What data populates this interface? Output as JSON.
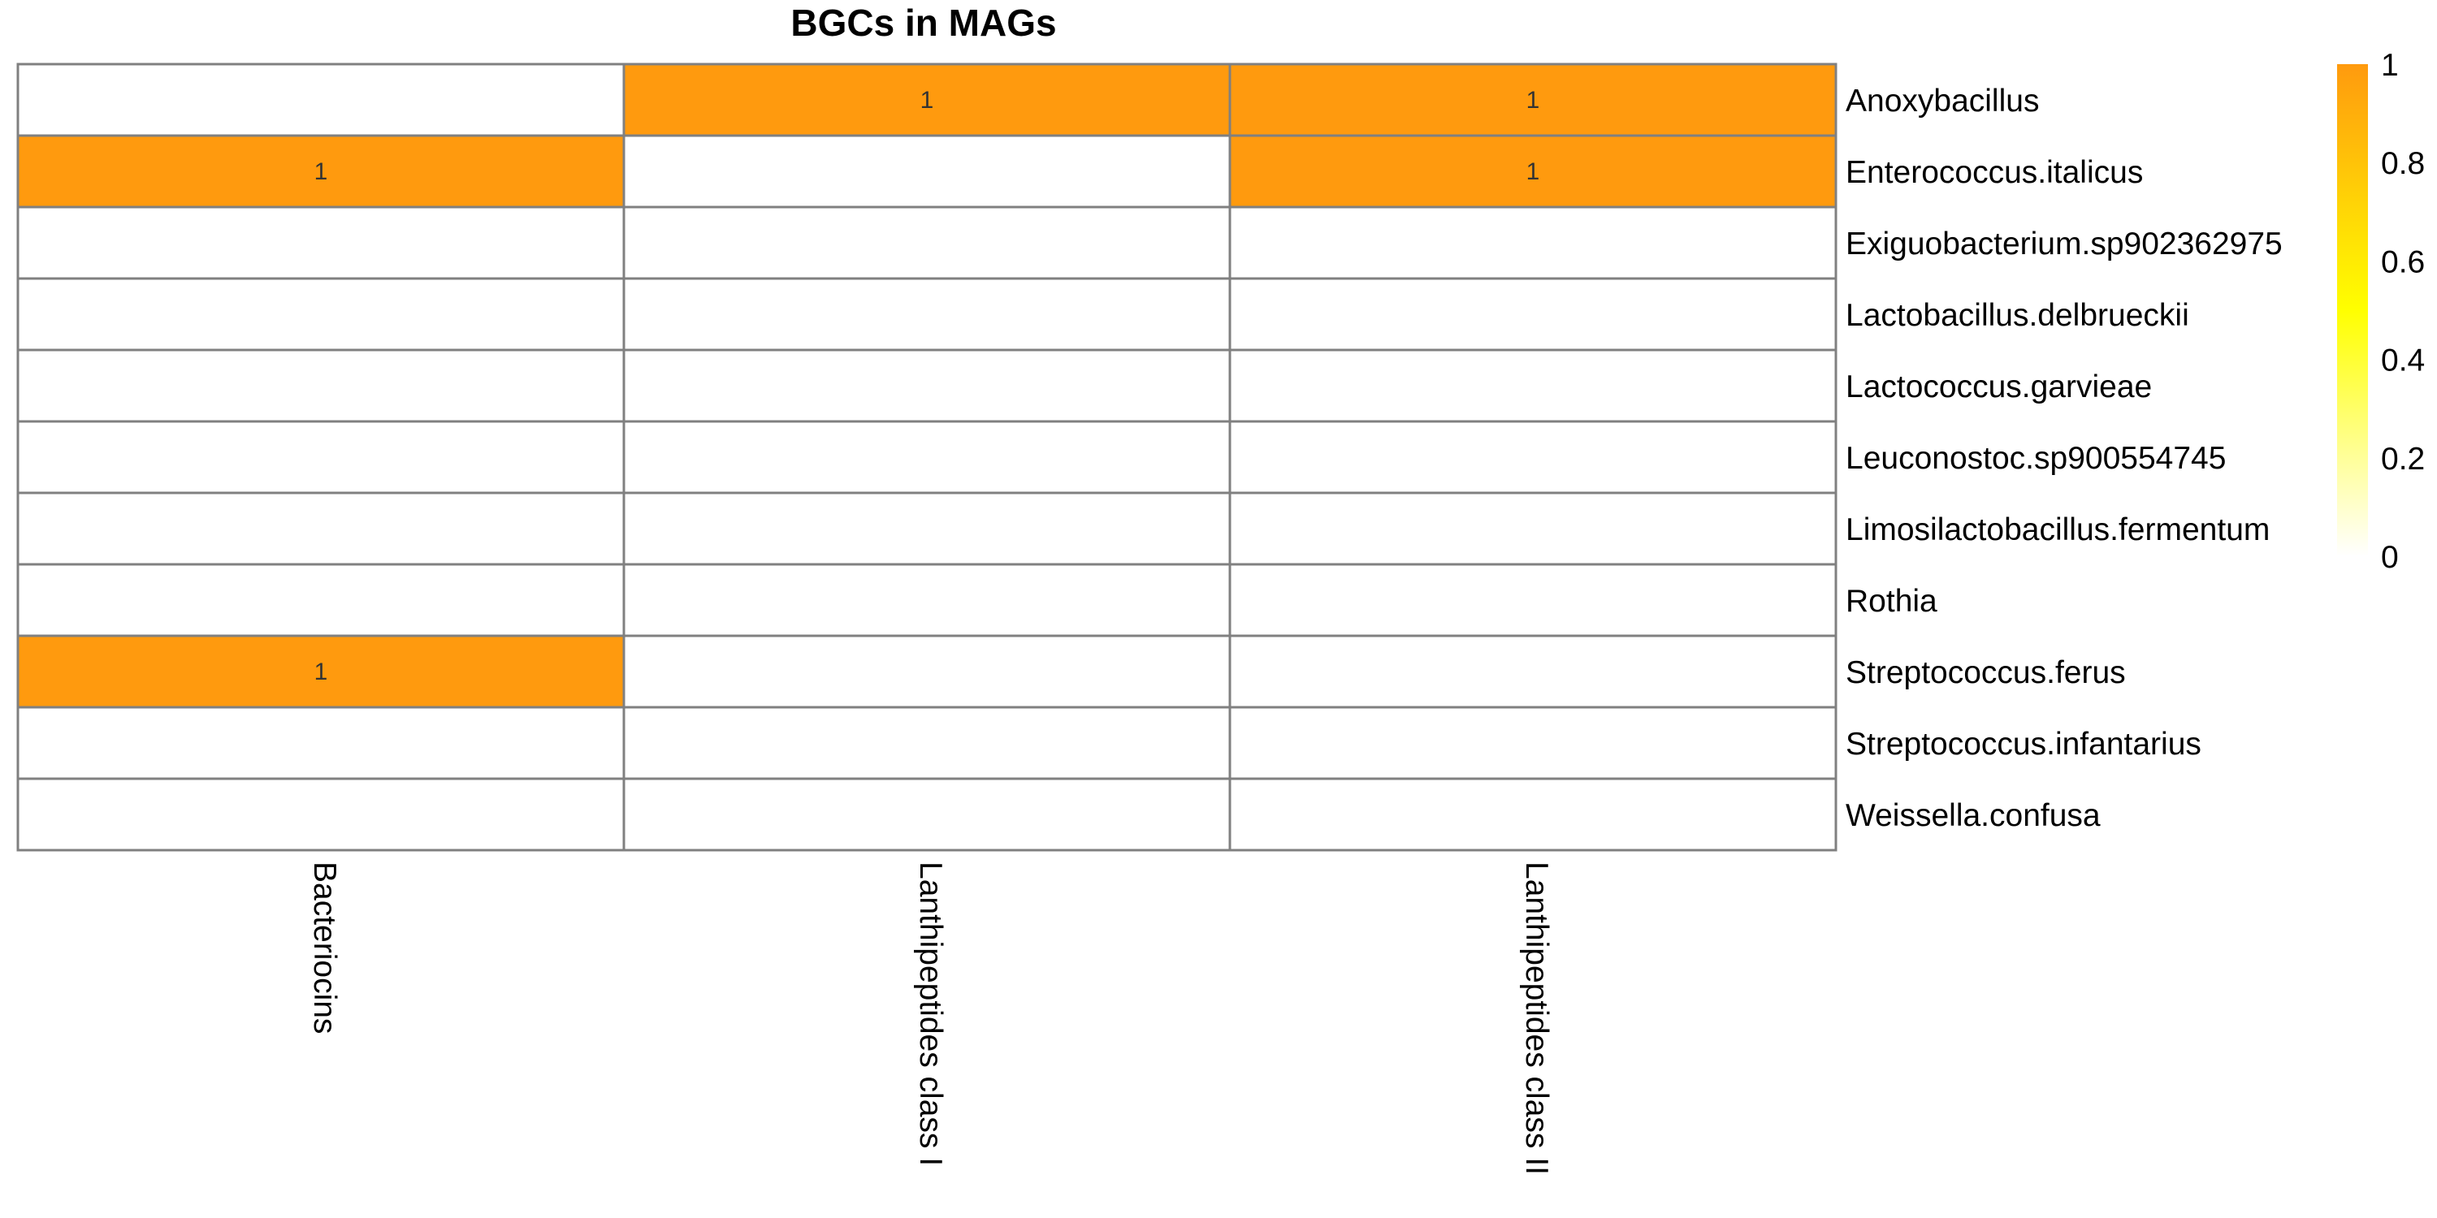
{
  "chart_data": {
    "type": "heatmap",
    "title": "BGCs in MAGs",
    "columns": [
      "Bacteriocins",
      "Lanthipeptides class I",
      "Lanthipeptides class II"
    ],
    "rows": [
      "Anoxybacillus",
      "Enterococcus.italicus",
      "Exiguobacterium.sp902362975",
      "Lactobacillus.delbrueckii",
      "Lactococcus.garvieae",
      "Leuconostoc.sp900554745",
      "Limosilactobacillus.fermentum",
      "Rothia",
      "Streptococcus.ferus",
      "Streptococcus.infantarius",
      "Weissella.confusa"
    ],
    "values": [
      [
        0,
        1,
        1
      ],
      [
        1,
        0,
        1
      ],
      [
        0,
        0,
        0
      ],
      [
        0,
        0,
        0
      ],
      [
        0,
        0,
        0
      ],
      [
        0,
        0,
        0
      ],
      [
        0,
        0,
        0
      ],
      [
        0,
        0,
        0
      ],
      [
        1,
        0,
        0
      ],
      [
        0,
        0,
        0
      ],
      [
        0,
        0,
        0
      ]
    ],
    "cell_labels_shown_for_nonzero": true,
    "color_scale": {
      "low_color": "#ffffff",
      "mid_color": "#ffff00",
      "high_color": "#ff9a0e",
      "range": [
        0,
        1
      ],
      "ticks": [
        "0",
        "0.2",
        "0.4",
        "0.6",
        "0.8",
        "1"
      ]
    },
    "legend_position": "top-right",
    "grid_color": "#808080"
  }
}
